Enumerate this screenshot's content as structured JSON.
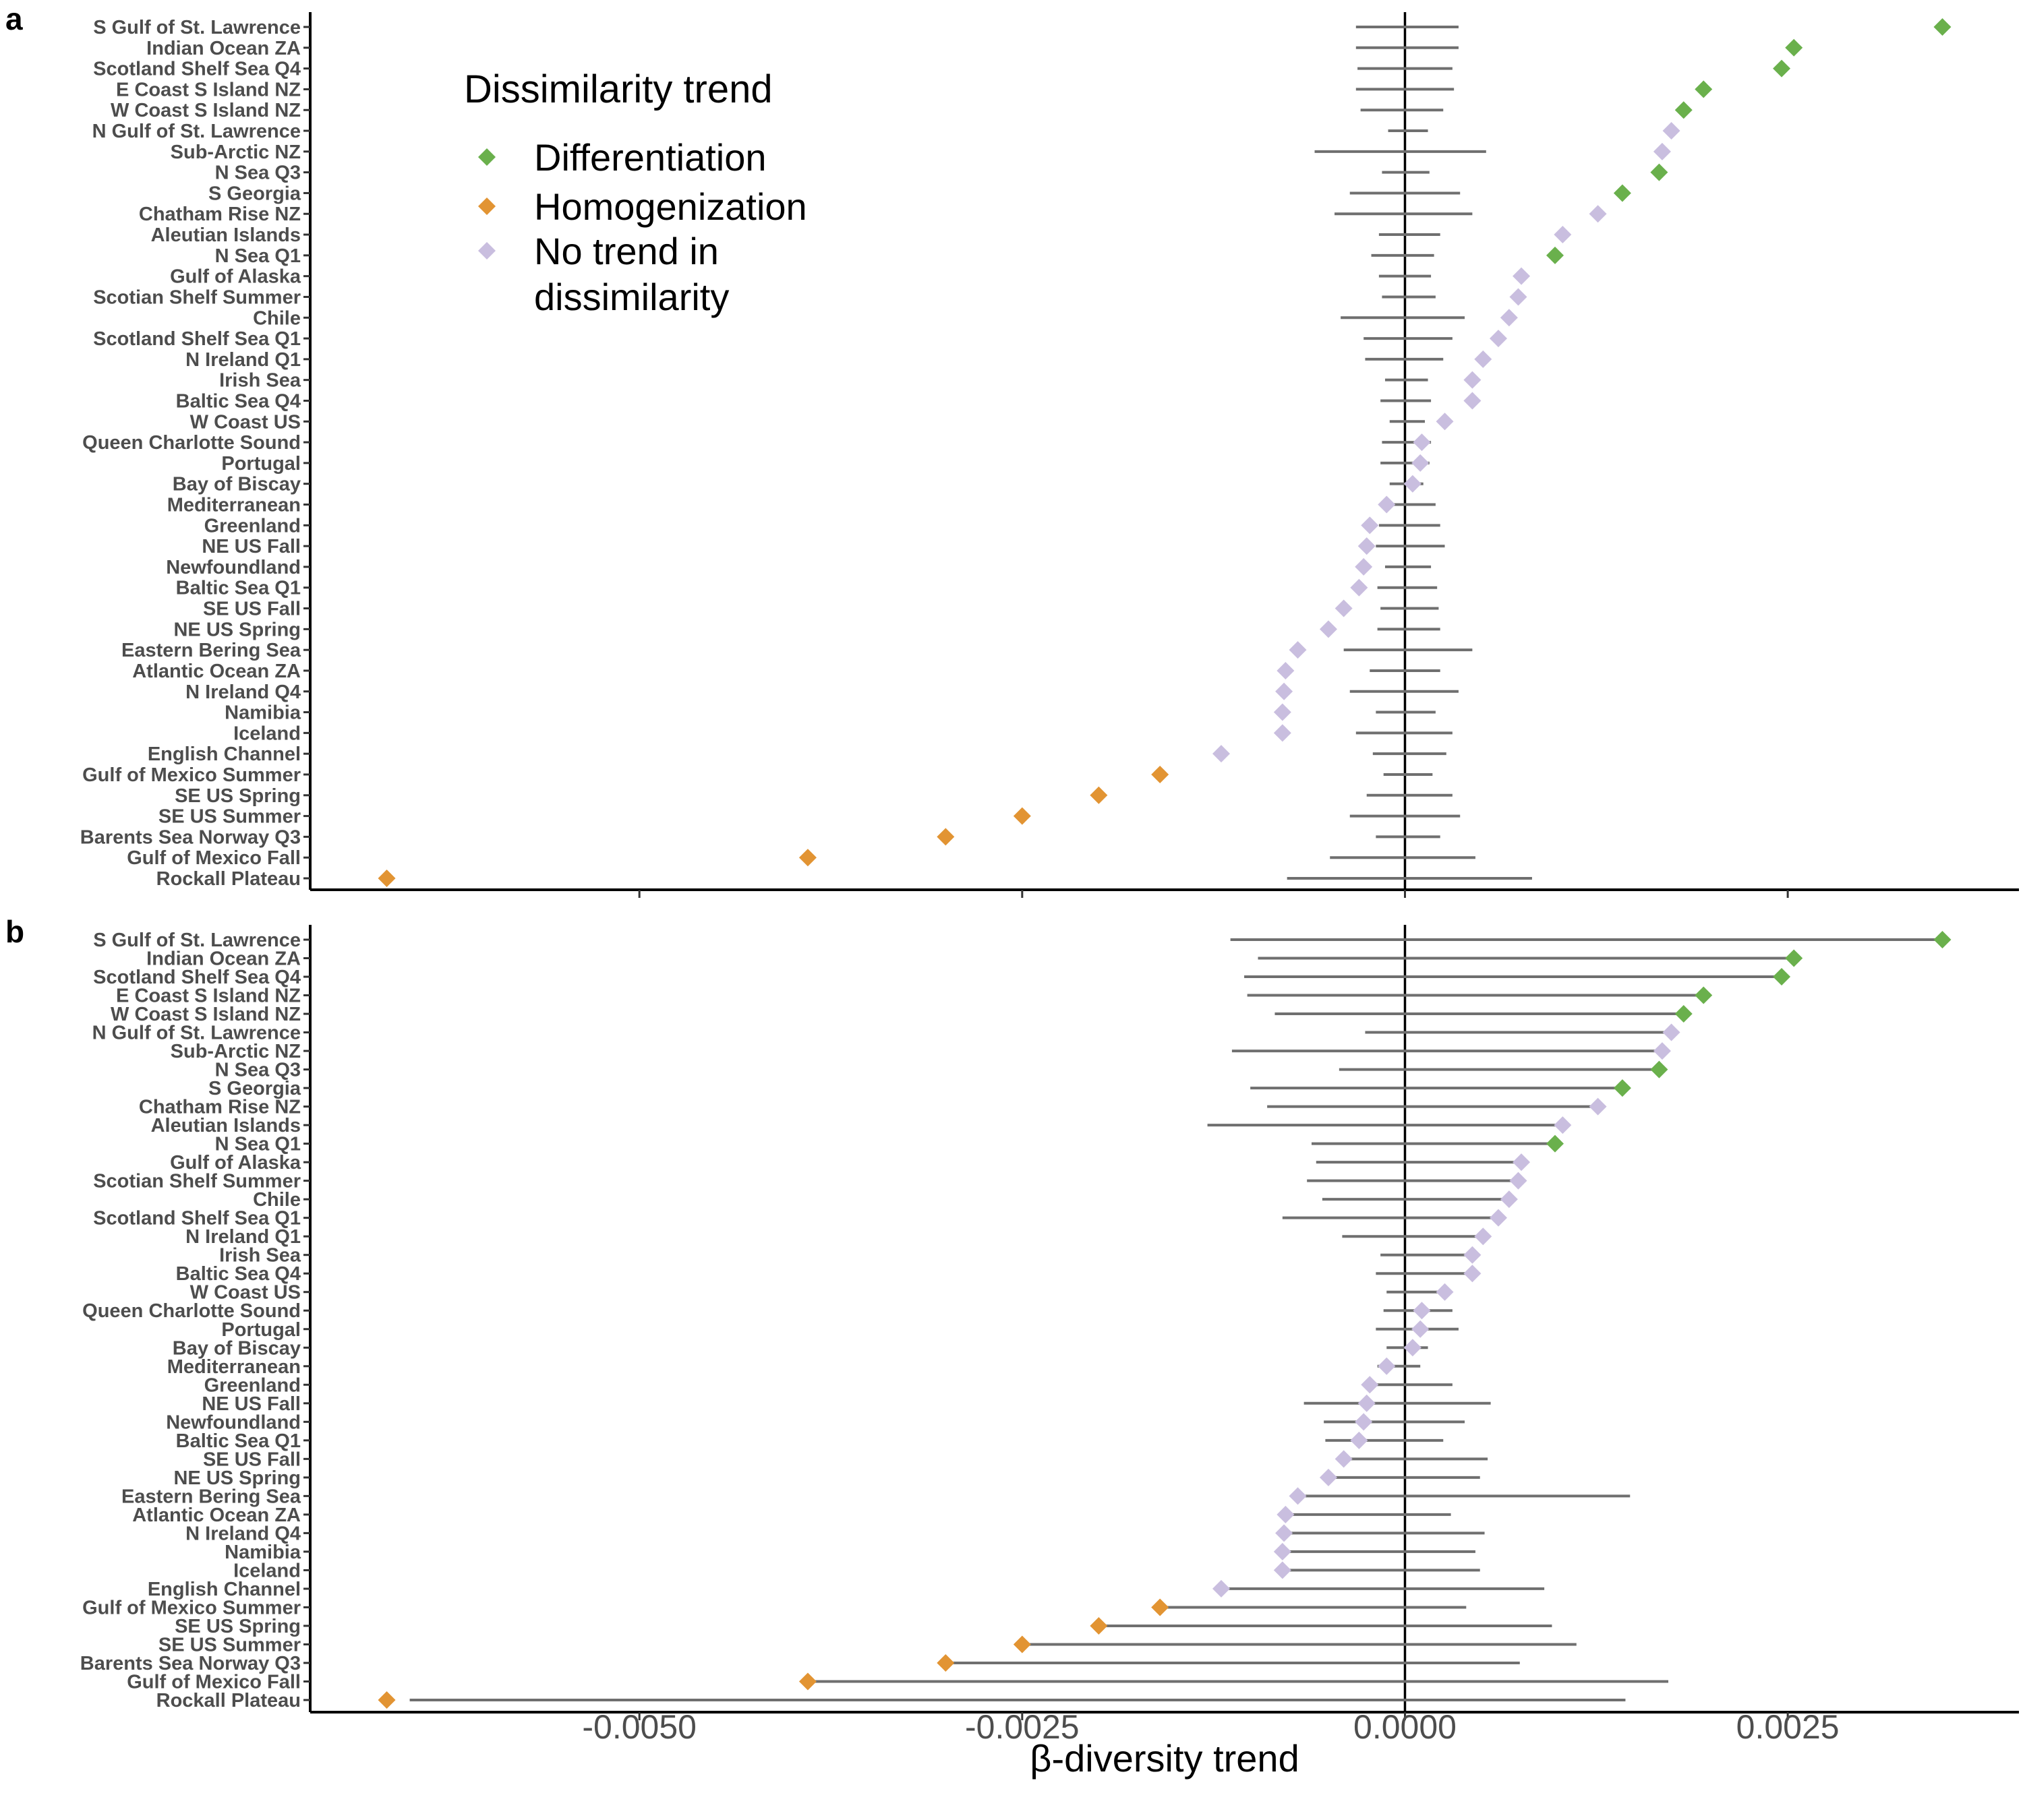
{
  "chart_data": {
    "type": "forest",
    "xlabel": "β-diversity trend",
    "xlim": [
      -0.00715,
      0.00401
    ],
    "x_ticks": [
      -0.005,
      -0.0025,
      0.0,
      0.0025
    ],
    "x_tick_labels": [
      "-0.0050",
      "-0.0025",
      "0.0000",
      "0.0025"
    ],
    "grid": false,
    "reference_line": 0.0,
    "legend": {
      "title": "Dissimilarity trend",
      "placement": "top-left inside panel a",
      "entries": [
        {
          "key": "Differentiation",
          "label": "Differentiation",
          "color": "#6ab04c"
        },
        {
          "key": "Homogenization",
          "label": "Homogenization",
          "color": "#e29433"
        },
        {
          "key": "No trend",
          "label": "No trend in\ndissimilarity",
          "color": "#c9bedf"
        }
      ]
    },
    "categories": [
      "S Gulf of St. Lawrence",
      "Indian Ocean ZA",
      "Scotland Shelf Sea Q4",
      "E Coast S Island NZ",
      "W Coast S Island NZ",
      "N Gulf of St. Lawrence",
      "Sub-Arctic NZ",
      "N Sea Q3",
      "S Georgia",
      "Chatham Rise NZ",
      "Aleutian Islands",
      "N Sea Q1",
      "Gulf of Alaska",
      "Scotian Shelf Summer",
      "Chile",
      "Scotland Shelf Sea Q1",
      "N Ireland Q1",
      "Irish Sea",
      "Baltic Sea Q4",
      "W Coast US",
      "Queen Charlotte Sound",
      "Portugal",
      "Bay of Biscay",
      "Mediterranean",
      "Greenland",
      "NE US Fall",
      "Newfoundland",
      "Baltic Sea Q1",
      "SE US Fall",
      "NE US Spring",
      "Eastern Bering Sea",
      "Atlantic Ocean ZA",
      "N Ireland Q4",
      "Namibia",
      "Iceland",
      "English Channel",
      "Gulf of Mexico Summer",
      "SE US Spring",
      "SE US Summer",
      "Barents Sea Norway Q3",
      "Gulf of Mexico Fall",
      "Rockall Plateau"
    ],
    "trend": [
      "Differentiation",
      "Differentiation",
      "Differentiation",
      "Differentiation",
      "Differentiation",
      "No trend",
      "No trend",
      "Differentiation",
      "Differentiation",
      "No trend",
      "No trend",
      "Differentiation",
      "No trend",
      "No trend",
      "No trend",
      "No trend",
      "No trend",
      "No trend",
      "No trend",
      "No trend",
      "No trend",
      "No trend",
      "No trend",
      "No trend",
      "No trend",
      "No trend",
      "No trend",
      "No trend",
      "No trend",
      "No trend",
      "No trend",
      "No trend",
      "No trend",
      "No trend",
      "No trend",
      "No trend",
      "Homogenization",
      "Homogenization",
      "Homogenization",
      "Homogenization",
      "Homogenization",
      "Homogenization"
    ],
    "values": [
      0.00351,
      0.00254,
      0.00246,
      0.00195,
      0.00182,
      0.00174,
      0.00168,
      0.00166,
      0.00142,
      0.00126,
      0.00103,
      0.00098,
      0.00076,
      0.00074,
      0.00068,
      0.00061,
      0.00051,
      0.00044,
      0.00044,
      0.00026,
      0.00011,
      0.0001,
      5e-05,
      -0.00012,
      -0.00023,
      -0.00025,
      -0.00027,
      -0.0003,
      -0.0004,
      -0.0005,
      -0.0007,
      -0.00078,
      -0.00079,
      -0.0008,
      -0.0008,
      -0.0012,
      -0.0016,
      -0.002,
      -0.0025,
      -0.003,
      -0.0039,
      -0.00665
    ],
    "panels": [
      {
        "tag": "a",
        "ci_low": [
          -0.00032,
          -0.00032,
          -0.00031,
          -0.00032,
          -0.00029,
          -0.00011,
          -0.00059,
          -0.00015,
          -0.00036,
          -0.00046,
          -0.00017,
          -0.00022,
          -0.00017,
          -0.00015,
          -0.00042,
          -0.00027,
          -0.00026,
          -0.00013,
          -0.00016,
          -0.0001,
          -0.00015,
          -0.00016,
          -0.0001,
          -0.00013,
          -0.00017,
          -0.00019,
          -0.00013,
          -0.00018,
          -0.00016,
          -0.00018,
          -0.0004,
          -0.00023,
          -0.00036,
          -0.00019,
          -0.00032,
          -0.00021,
          -0.00014,
          -0.00025,
          -0.00036,
          -0.00019,
          -0.00049,
          -0.00077
        ],
        "ci_high": [
          0.00035,
          0.00035,
          0.00031,
          0.00032,
          0.00025,
          0.00015,
          0.00053,
          0.00016,
          0.00036,
          0.00044,
          0.00023,
          0.00019,
          0.00017,
          0.0002,
          0.00039,
          0.00031,
          0.00025,
          0.00015,
          0.00017,
          0.00013,
          0.00017,
          0.00016,
          0.00012,
          0.0002,
          0.00023,
          0.00026,
          0.00017,
          0.00021,
          0.00022,
          0.00023,
          0.00044,
          0.00023,
          0.00035,
          0.0002,
          0.00031,
          0.00027,
          0.00018,
          0.00031,
          0.00036,
          0.00023,
          0.00046,
          0.00083
        ]
      },
      {
        "tag": "b",
        "ci_low": [
          -0.00114,
          -0.00096,
          -0.00105,
          -0.00103,
          -0.00085,
          -0.00026,
          -0.00113,
          -0.00043,
          -0.00101,
          -0.0009,
          -0.00129,
          -0.00061,
          -0.00058,
          -0.00064,
          -0.00054,
          -0.0008,
          -0.00041,
          -0.00016,
          -0.00019,
          -0.00012,
          -0.00014,
          -0.00019,
          -0.00012,
          -0.00018,
          -0.00023,
          -0.00066,
          -0.00053,
          -0.00052,
          -0.0004,
          -0.0005,
          -0.00065,
          -0.0008,
          -0.0008,
          -0.0008,
          -0.0008,
          -0.00115,
          -0.0016,
          -0.002,
          -0.0025,
          -0.003,
          -0.0039,
          -0.0065
        ],
        "ci_high": [
          0.00351,
          0.00254,
          0.00246,
          0.00195,
          0.00182,
          0.00174,
          0.00168,
          0.00166,
          0.00142,
          0.00126,
          0.00103,
          0.00098,
          0.00076,
          0.00074,
          0.00068,
          0.00061,
          0.00051,
          0.00044,
          0.00044,
          0.00026,
          0.00031,
          0.00035,
          0.00015,
          0.0001,
          0.00031,
          0.00056,
          0.00039,
          0.00025,
          0.00054,
          0.00049,
          0.00147,
          0.0003,
          0.00052,
          0.00046,
          0.00049,
          0.00091,
          0.0004,
          0.00096,
          0.00112,
          0.00075,
          0.00172,
          0.00144
        ]
      }
    ]
  }
}
